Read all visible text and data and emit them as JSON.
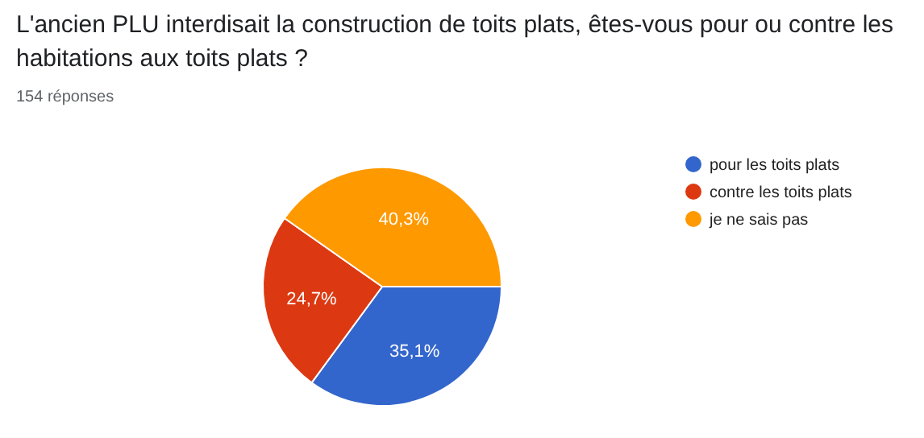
{
  "chart_data": {
    "type": "pie",
    "title": "L'ancien PLU interdisait la construction de toits plats, êtes-vous pour ou contre les habitations aux toits plats ?",
    "subtitle": "154 réponses",
    "categories": [
      "pour les toits plats",
      "contre les toits plats",
      "je ne sais pas"
    ],
    "values": [
      35.1,
      24.7,
      40.3
    ],
    "value_labels": [
      "35,1%",
      "24,7%",
      "40,3%"
    ],
    "colors": [
      "#3366cc",
      "#dc3912",
      "#ff9900"
    ],
    "legend": "right"
  }
}
